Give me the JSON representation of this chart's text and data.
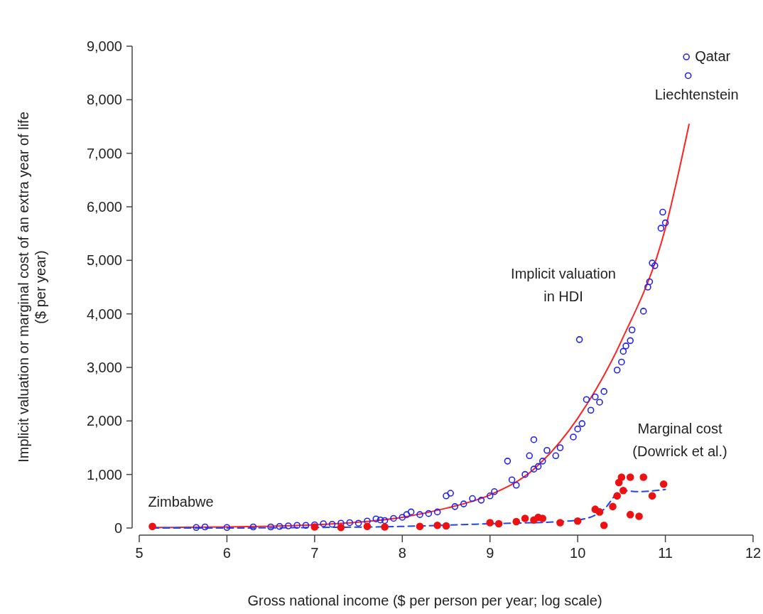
{
  "chart_data": {
    "type": "scatter",
    "xlabel": "Gross national income ($ per person per year; log scale)",
    "ylabel": "Implicit valuation or marginal cost of an extra year of life\n($ per year)",
    "xlim": [
      5,
      12
    ],
    "xticks": [
      5,
      6,
      7,
      8,
      9,
      10,
      11,
      12
    ],
    "ylim": [
      0,
      9000
    ],
    "yticks": [
      {
        "value": 0,
        "label": "0"
      },
      {
        "value": 1000,
        "label": "1,000"
      },
      {
        "value": 2000,
        "label": "2,000"
      },
      {
        "value": 3000,
        "label": "3,000"
      },
      {
        "value": 4000,
        "label": "4,000"
      },
      {
        "value": 5000,
        "label": "5,000"
      },
      {
        "value": 6000,
        "label": "6,000"
      },
      {
        "value": 7000,
        "label": "7,000"
      },
      {
        "value": 8000,
        "label": "8,000"
      },
      {
        "value": 9000,
        "label": "9,000"
      }
    ],
    "grid": false,
    "annotations": [
      {
        "text": "Qatar",
        "x": 11.24,
        "y": 8800
      },
      {
        "text": "Liechtenstein",
        "x": 11.26,
        "y": 8450
      },
      {
        "text": "Zimbabwe",
        "x": 5.15,
        "y": 30
      },
      "Implicit valuation\nin HDI",
      "Marginal cost\n(Dowrick et al.)"
    ],
    "series": [
      {
        "marker": "circle",
        "color": "#2222ee",
        "x": [
          5.65,
          5.75,
          6.0,
          6.3,
          6.5,
          6.6,
          6.7,
          6.8,
          6.9,
          7.0,
          7.1,
          7.2,
          7.3,
          7.4,
          7.5,
          7.6,
          7.7,
          7.75,
          7.8,
          7.9,
          8.0,
          8.05,
          8.1,
          8.2,
          8.3,
          8.4,
          8.5,
          8.55,
          8.6,
          8.7,
          8.8,
          8.9,
          9.0,
          9.05,
          9.2,
          9.25,
          9.3,
          9.4,
          9.45,
          9.5,
          9.5,
          9.55,
          9.6,
          9.65,
          9.75,
          9.8,
          9.95,
          10.0,
          10.05,
          10.02,
          10.1,
          10.15,
          10.2,
          10.25,
          10.3,
          10.45,
          10.5,
          10.52,
          10.55,
          10.6,
          10.62,
          10.75,
          10.8,
          10.82,
          10.85,
          10.88,
          10.95,
          10.97,
          11.0,
          11.24,
          11.26
        ],
        "values": [
          10,
          20,
          10,
          20,
          20,
          30,
          40,
          50,
          50,
          60,
          80,
          70,
          90,
          100,
          90,
          130,
          170,
          150,
          140,
          180,
          200,
          250,
          300,
          250,
          270,
          300,
          600,
          650,
          400,
          450,
          550,
          520,
          600,
          680,
          1250,
          900,
          800,
          1000,
          1350,
          1650,
          1100,
          1150,
          1250,
          1450,
          1350,
          1500,
          1700,
          1850,
          1950,
          3520,
          2400,
          2200,
          2450,
          2350,
          2550,
          2950,
          3100,
          3300,
          3400,
          3500,
          3700,
          4050,
          4500,
          4600,
          4950,
          4900,
          5600,
          5900,
          5700,
          8800,
          8450
        ]
      },
      {
        "marker": "circle",
        "color": "#ee1111",
        "x": [
          5.15,
          7.0,
          7.3,
          7.6,
          7.8,
          8.2,
          8.4,
          8.5,
          9.0,
          9.1,
          9.3,
          9.4,
          9.5,
          9.55,
          9.6,
          9.8,
          10.0,
          10.2,
          10.25,
          10.3,
          10.4,
          10.45,
          10.47,
          10.5,
          10.52,
          10.6,
          10.6,
          10.7,
          10.75,
          10.85,
          10.98
        ],
        "values": [
          30,
          20,
          10,
          30,
          20,
          30,
          50,
          40,
          100,
          80,
          120,
          180,
          150,
          200,
          180,
          100,
          130,
          350,
          300,
          50,
          400,
          600,
          850,
          950,
          700,
          950,
          250,
          220,
          950,
          600,
          820
        ]
      },
      {
        "type": "line",
        "line_style": "solid",
        "color": "#ff2222",
        "x": [
          5.15,
          6,
          7,
          7.5,
          8,
          8.5,
          9,
          9.5,
          10,
          10.5,
          11,
          11.27
        ],
        "values": [
          10,
          20,
          60,
          110,
          200,
          370,
          620,
          1100,
          2050,
          3500,
          5600,
          7540
        ]
      },
      {
        "type": "line",
        "line_style": "dashed",
        "color": "#2244ee",
        "x": [
          5.15,
          6,
          7,
          8,
          9,
          9.8,
          10.1,
          10.3,
          10.5,
          10.7,
          11
        ],
        "values": [
          0,
          0,
          10,
          30,
          80,
          120,
          180,
          350,
          700,
          680,
          720
        ]
      }
    ]
  }
}
